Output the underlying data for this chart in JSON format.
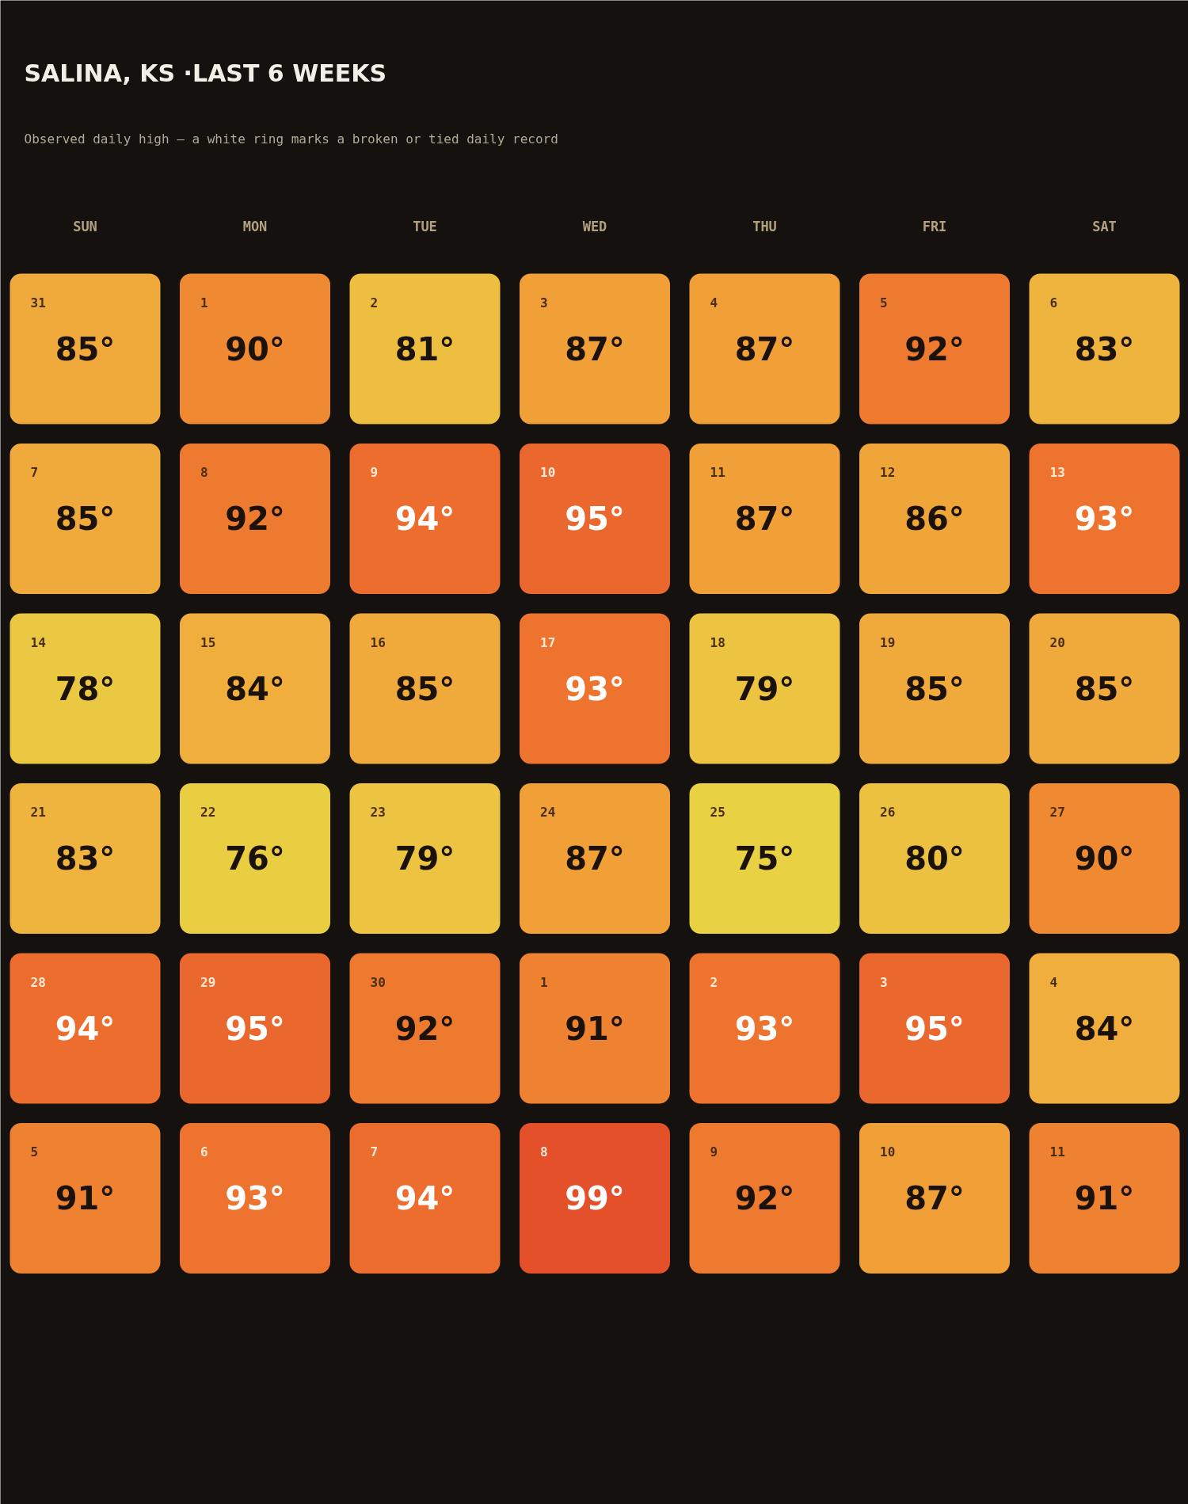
{
  "chart_data": {
    "type": "heatmap",
    "title": "SALINA, KS ·LAST 6 WEEKS",
    "subtitle": "Observed daily high — a white ring marks a broken or tied daily record",
    "categories": [
      "SUN",
      "MON",
      "TUE",
      "WED",
      "THU",
      "FRI",
      "SAT"
    ],
    "y_categories": [
      null,
      null,
      null,
      null,
      null,
      null
    ],
    "cells": [
      [
        85,
        90,
        81,
        87,
        87,
        92,
        83
      ],
      [
        85,
        92,
        94,
        95,
        87,
        86,
        93
      ],
      [
        78,
        84,
        85,
        93,
        79,
        85,
        85
      ],
      [
        83,
        76,
        79,
        87,
        75,
        80,
        90
      ],
      [
        94,
        95,
        92,
        91,
        93,
        95,
        84
      ],
      [
        91,
        93,
        94,
        99,
        92,
        87,
        91
      ]
    ],
    "cell_labels": [
      [
        "85°",
        "90°",
        "81°",
        "87°",
        "87°",
        "92°",
        "83°"
      ],
      [
        "85°",
        "92°",
        "94°",
        "95°",
        "87°",
        "86°",
        "93°"
      ],
      [
        "78°",
        "84°",
        "85°",
        "93°",
        "79°",
        "85°",
        "85°"
      ],
      [
        "83°",
        "76°",
        "79°",
        "87°",
        "75°",
        "80°",
        "90°"
      ],
      [
        "94°",
        "95°",
        "92°",
        "91°",
        "93°",
        "95°",
        "84°"
      ],
      [
        "91°",
        "93°",
        "94°",
        "99°",
        "92°",
        "87°",
        "91°"
      ]
    ],
    "annotations": [
      "31",
      "1",
      "2",
      "3",
      "4",
      "5",
      "6",
      "7",
      "8",
      "9",
      "10",
      "11",
      "12",
      "13",
      "14",
      "15",
      "16",
      "17",
      "18",
      "19",
      "20",
      "21",
      "22",
      "23",
      "24",
      "25",
      "26",
      "27",
      "28",
      "29",
      "30",
      "1",
      "2",
      "3",
      "4",
      "5",
      "6",
      "7",
      "8",
      "9",
      "10",
      "11"
    ]
  }
}
